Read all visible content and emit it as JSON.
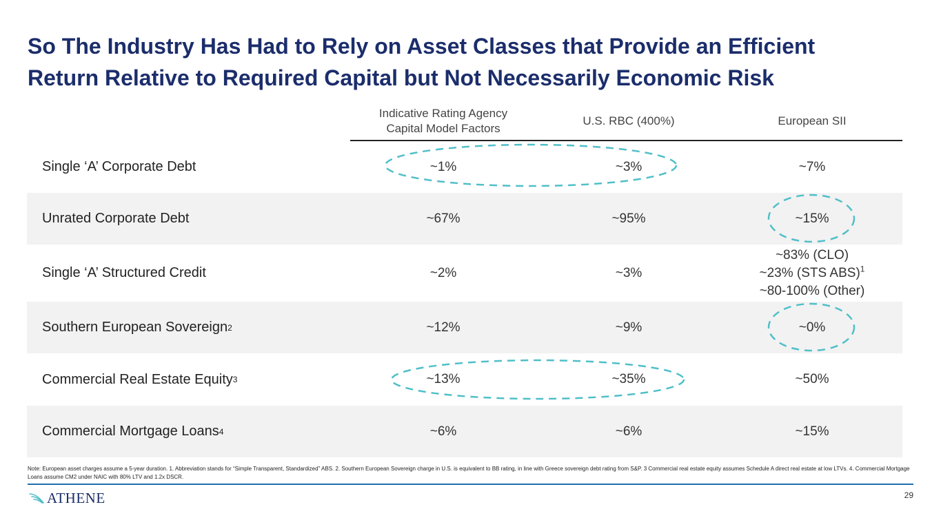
{
  "slide": {
    "title_line1": "So The Industry Has Had to Rely on Asset Classes that Provide an Efficient",
    "title_line2": "Return Relative to Required Capital but Not Necessarily Economic Risk",
    "page_number": "29"
  },
  "table": {
    "headers": {
      "col1_line1": "Indicative Rating Agency",
      "col1_line2": "Capital Model Factors",
      "col2": "U.S. RBC (400%)",
      "col3": "European SII"
    },
    "rows": [
      {
        "label": "Single ‘A’ Corporate Debt",
        "sup": "",
        "col1": "~1%",
        "col2": "~3%",
        "col3": "~7%"
      },
      {
        "label": "Unrated Corporate Debt",
        "sup": "",
        "col1": "~67%",
        "col2": "~95%",
        "col3": "~15%"
      },
      {
        "label": "Single ‘A’ Structured Credit",
        "sup": "",
        "col1": "~2%",
        "col2": "~3%",
        "col3_line1": "~83% (CLO)",
        "col3_line2": "~23% (STS ABS)",
        "col3_line2_sup": "1",
        "col3_line3": "~80-100% (Other)"
      },
      {
        "label": "Southern European Sovereign",
        "sup": "2",
        "col1": "~12%",
        "col2": "~9%",
        "col3": "~0%"
      },
      {
        "label": "Commercial Real Estate Equity",
        "sup": "3",
        "col1": "~13%",
        "col2": "~35%",
        "col3": "~50%"
      },
      {
        "label": "Commercial Mortgage Loans",
        "sup": "4",
        "col1": "~6%",
        "col2": "~6%",
        "col3": "~15%"
      }
    ]
  },
  "footnote": "Note: European asset charges assume a 5-year duration. 1. Abbreviation stands for “Simple Transparent, Standardized” ABS. 2. Southern European Sovereign charge in U.S. is equivalent to BB rating, in line with Greece sovereign debt rating from S&P. 3 Commercial real estate equity assumes Schedule A direct real estate at low LTVs. 4. Commercial Mortgage Loans assume CM2 under NAIC with 80% LTV and 1.2x DSCR.",
  "logo": {
    "text": "ATHENE"
  },
  "colors": {
    "title": "#1b2d6b",
    "oval": "#4fbfc8",
    "rule": "#1f6fae",
    "shade": "#f2f2f2"
  }
}
